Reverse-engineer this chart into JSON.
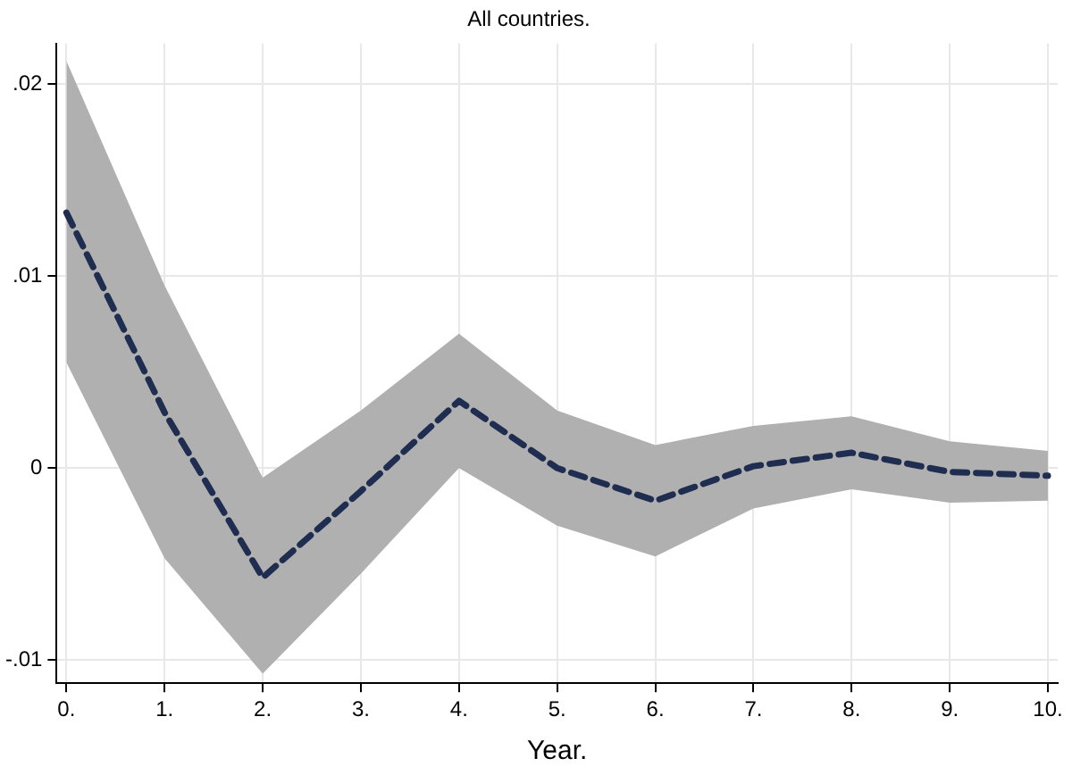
{
  "chart_data": {
    "type": "line",
    "title": "All countries.",
    "xlabel": "Year.",
    "x": [
      0,
      1,
      2,
      3,
      4,
      5,
      6,
      7,
      8,
      9,
      10
    ],
    "series": [
      {
        "color": "#1f2d50",
        "values": [
          0.0133,
          0.0029,
          -0.0057,
          -0.0012,
          0.0035,
          0.0,
          -0.0017,
          0.0001,
          0.0008,
          -0.0002,
          -0.0004
        ],
        "lower": [
          0.0055,
          -0.0047,
          -0.0107,
          -0.0055,
          0.0,
          -0.003,
          -0.0046,
          -0.0021,
          -0.0011,
          -0.0018,
          -0.0017
        ],
        "upper": [
          0.0212,
          0.0095,
          -0.0005,
          0.003,
          0.007,
          0.003,
          0.0012,
          0.0022,
          0.0027,
          0.0014,
          0.0009
        ]
      }
    ],
    "xlim": [
      -0.1,
      10.1
    ],
    "xticks": [
      {
        "value": 0,
        "label": "0."
      },
      {
        "value": 1,
        "label": "1."
      },
      {
        "value": 2,
        "label": "2."
      },
      {
        "value": 3,
        "label": "3."
      },
      {
        "value": 4,
        "label": "4."
      },
      {
        "value": 5,
        "label": "5."
      },
      {
        "value": 6,
        "label": "6."
      },
      {
        "value": 7,
        "label": "7."
      },
      {
        "value": 8,
        "label": "8."
      },
      {
        "value": 9,
        "label": "9."
      },
      {
        "value": 10,
        "label": "10."
      }
    ],
    "ylim": [
      -0.0112,
      0.0221
    ],
    "yticks": [
      {
        "value": -0.01,
        "label": "-.01"
      },
      0,
      {
        "value": 0.01,
        "label": ".01"
      },
      {
        "value": 0.02,
        "label": ".02"
      }
    ],
    "grid": true,
    "legend": false,
    "marker": "none",
    "line_style": "dashed"
  }
}
